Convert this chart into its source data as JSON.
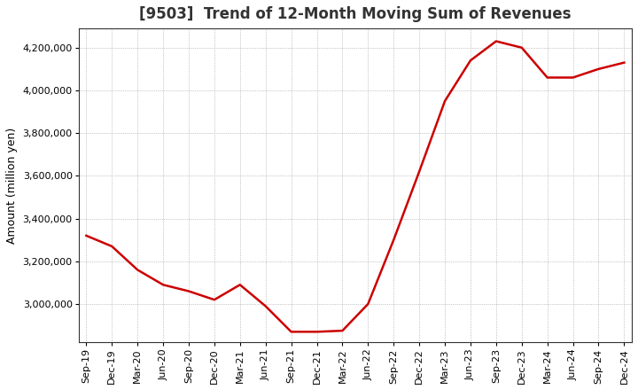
{
  "title": "[9503]  Trend of 12-Month Moving Sum of Revenues",
  "ylabel": "Amount (million yen)",
  "background_color": "#ffffff",
  "line_color": "#cc0000",
  "grid_color": "#999999",
  "x_labels": [
    "Sep-19",
    "Dec-19",
    "Mar-20",
    "Jun-20",
    "Sep-20",
    "Dec-20",
    "Mar-21",
    "Jun-21",
    "Sep-21",
    "Dec-21",
    "Mar-22",
    "Jun-22",
    "Sep-22",
    "Dec-22",
    "Mar-23",
    "Jun-23",
    "Sep-23",
    "Dec-23",
    "Mar-24",
    "Jun-24",
    "Sep-24",
    "Dec-24"
  ],
  "y_values": [
    3320000,
    3270000,
    3160000,
    3090000,
    3060000,
    3020000,
    3090000,
    2990000,
    2870000,
    2870000,
    2875000,
    3000000,
    3300000,
    3620000,
    3950000,
    4140000,
    4230000,
    4200000,
    4060000,
    4060000,
    4100000,
    4130000
  ],
  "ylim_min": 2820000,
  "ylim_max": 4290000,
  "yticks": [
    3000000,
    3200000,
    3400000,
    3600000,
    3800000,
    4000000,
    4200000
  ],
  "title_fontsize": 12,
  "tick_fontsize": 8,
  "ylabel_fontsize": 9,
  "line_width": 1.8
}
